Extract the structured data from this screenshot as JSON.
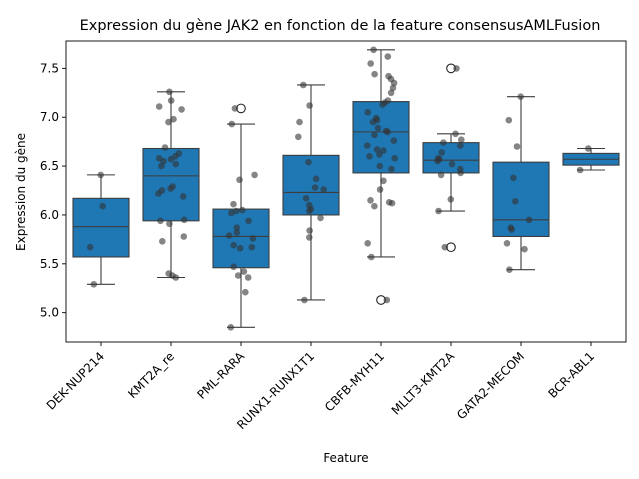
{
  "chart_data": {
    "type": "box",
    "title": "Expression du gène JAK2 en fonction de la feature consensusAMLFusion",
    "xlabel": "Feature",
    "ylabel": "Expression du gène",
    "ylim": [
      4.7,
      7.78
    ],
    "yticks": [
      5.0,
      5.5,
      6.0,
      6.5,
      7.0,
      7.5
    ],
    "ytick_labels": [
      "5.0",
      "5.5",
      "6.0",
      "6.5",
      "7.0",
      "7.5"
    ],
    "grid": false,
    "colors": {
      "box": "#1f77b4",
      "point": "#333333",
      "line": "#3d3d3d"
    },
    "categories": [
      "DEK-NUP214",
      "KMT2A_re",
      "PML-RARA",
      "RUNX1-RUNX1T1",
      "CBFB-MYH11",
      "MLLT3-KMT2A",
      "GATA2-MECOM",
      "BCR-ABL1"
    ],
    "boxes": [
      {
        "whislo": 5.29,
        "q1": 5.57,
        "med": 5.88,
        "q3": 6.17,
        "whishi": 6.41,
        "fliers": []
      },
      {
        "whislo": 5.36,
        "q1": 5.94,
        "med": 6.4,
        "q3": 6.68,
        "whishi": 7.26,
        "fliers": []
      },
      {
        "whislo": 4.85,
        "q1": 5.46,
        "med": 5.78,
        "q3": 6.06,
        "whishi": 6.93,
        "fliers": [
          7.09
        ]
      },
      {
        "whislo": 5.13,
        "q1": 6.0,
        "med": 6.23,
        "q3": 6.61,
        "whishi": 7.33,
        "fliers": []
      },
      {
        "whislo": 5.57,
        "q1": 6.43,
        "med": 6.85,
        "q3": 7.16,
        "whishi": 7.69,
        "fliers": [
          5.13
        ]
      },
      {
        "whislo": 6.04,
        "q1": 6.43,
        "med": 6.56,
        "q3": 6.74,
        "whishi": 6.83,
        "fliers": [
          7.5,
          5.67
        ]
      },
      {
        "whislo": 5.44,
        "q1": 5.78,
        "med": 5.95,
        "q3": 6.54,
        "whishi": 7.21,
        "fliers": []
      },
      {
        "whislo": 6.46,
        "q1": 6.51,
        "med": 6.57,
        "q3": 6.63,
        "whishi": 6.68,
        "fliers": []
      }
    ],
    "points": [
      [
        6.41,
        6.09,
        5.67,
        5.29
      ],
      [
        7.26,
        7.17,
        7.11,
        7.08,
        6.98,
        6.95,
        6.69,
        6.63,
        6.6,
        6.58,
        6.57,
        6.55,
        6.52,
        6.5,
        6.29,
        6.27,
        6.25,
        6.22,
        6.19,
        5.95,
        5.94,
        5.91,
        5.78,
        5.73,
        5.4,
        5.38,
        5.36
      ],
      [
        7.09,
        6.93,
        6.41,
        6.36,
        6.11,
        6.05,
        6.04,
        6.02,
        5.94,
        5.87,
        5.82,
        5.79,
        5.76,
        5.69,
        5.67,
        5.66,
        5.47,
        5.42,
        5.38,
        5.36,
        5.21,
        4.85
      ],
      [
        7.33,
        7.12,
        6.95,
        6.8,
        6.54,
        6.37,
        6.28,
        6.26,
        6.17,
        6.1,
        6.06,
        6.04,
        5.97,
        5.84,
        5.77,
        5.13
      ],
      [
        7.69,
        7.62,
        7.55,
        7.44,
        7.42,
        7.39,
        7.35,
        7.3,
        7.25,
        7.17,
        7.15,
        7.13,
        7.05,
        6.99,
        6.97,
        6.95,
        6.89,
        6.86,
        6.85,
        6.82,
        6.76,
        6.71,
        6.67,
        6.66,
        6.62,
        6.6,
        6.58,
        6.5,
        6.47,
        6.35,
        6.26,
        6.15,
        6.13,
        6.12,
        6.09,
        5.71,
        5.57,
        5.13
      ],
      [
        7.5,
        6.83,
        6.77,
        6.74,
        6.71,
        6.64,
        6.58,
        6.57,
        6.55,
        6.52,
        6.47,
        6.43,
        6.41,
        6.16,
        6.04,
        5.67
      ],
      [
        7.21,
        6.97,
        6.7,
        6.38,
        6.14,
        5.95,
        5.87,
        5.85,
        5.71,
        5.65,
        5.44
      ],
      [
        6.68,
        6.46
      ]
    ]
  }
}
